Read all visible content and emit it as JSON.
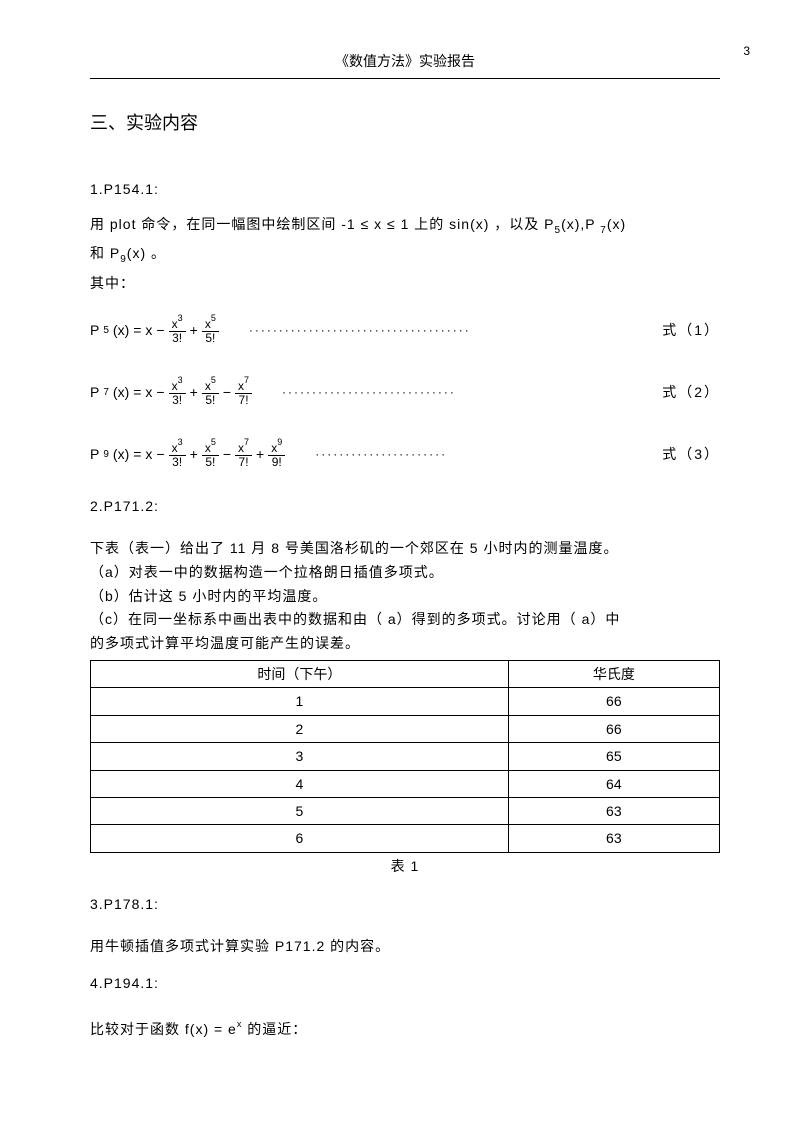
{
  "header": {
    "title": "《数值方法》实验报告",
    "page_number": "3"
  },
  "section_title": "三、实验内容",
  "q1": {
    "label": "1.P154.1:",
    "line1_a": "用 plot  命令，在同一幅图中绘制区间   -1 ≤ x ≤ 1 上的  sin(x)   ，以及  P",
    "line1_b": "(x),P ",
    "line1_c": "(x)",
    "line2_a": "和 P",
    "line2_b": "(x) 。",
    "line3": "其中：",
    "sub5": "5",
    "sub7": "7",
    "sub9": "9",
    "eq1_label": "式（1）",
    "eq2_label": "式（2）",
    "eq3_label": "式（3）",
    "dots_short": "·····································",
    "dots_mid": "·····························",
    "dots_long": "······················"
  },
  "formula_parts": {
    "P": "P",
    "open": "(x)",
    "eq": "=",
    "x": "x",
    "minus": "−",
    "plus": "+",
    "x3": "x",
    "e3": "3",
    "f3": "3!",
    "x5": "x",
    "e5": "5",
    "f5": "5!",
    "x7": "x",
    "e7": "7",
    "f7": "7!",
    "x9": "x",
    "e9": "9",
    "f9": "9!"
  },
  "q2": {
    "label": "2.P171.2:",
    "line1": "下表（表一）给出了   11 月 8 号美国洛杉矶的一个郊区在    5 小时内的测量温度。",
    "line_a": "（a）对表一中的数据构造一个拉格朗日插值多项式。",
    "line_b": "（b）估计这  5 小时内的平均温度。",
    "line_c": "（c）在同一坐标系中画出表中的数据和由（    a）得到的多项式。讨论用（   a）中",
    "line_c2": "的多项式计算平均温度可能产生的误差。",
    "table": {
      "col1": "时间（下午）",
      "col2": "华氏度",
      "rows": [
        [
          "1",
          "66"
        ],
        [
          "2",
          "66"
        ],
        [
          "3",
          "65"
        ],
        [
          "4",
          "64"
        ],
        [
          "5",
          "63"
        ],
        [
          "6",
          "63"
        ]
      ],
      "caption": "表 1"
    }
  },
  "q3": {
    "label": "3.P178.1:",
    "text": "用牛顿插值多项式计算实验    P171.2 的内容。"
  },
  "q4": {
    "label": "4.P194.1:",
    "text_a": "比较对于函数   f(x) = e",
    "text_b": " 的逼近：",
    "exp": "x"
  }
}
